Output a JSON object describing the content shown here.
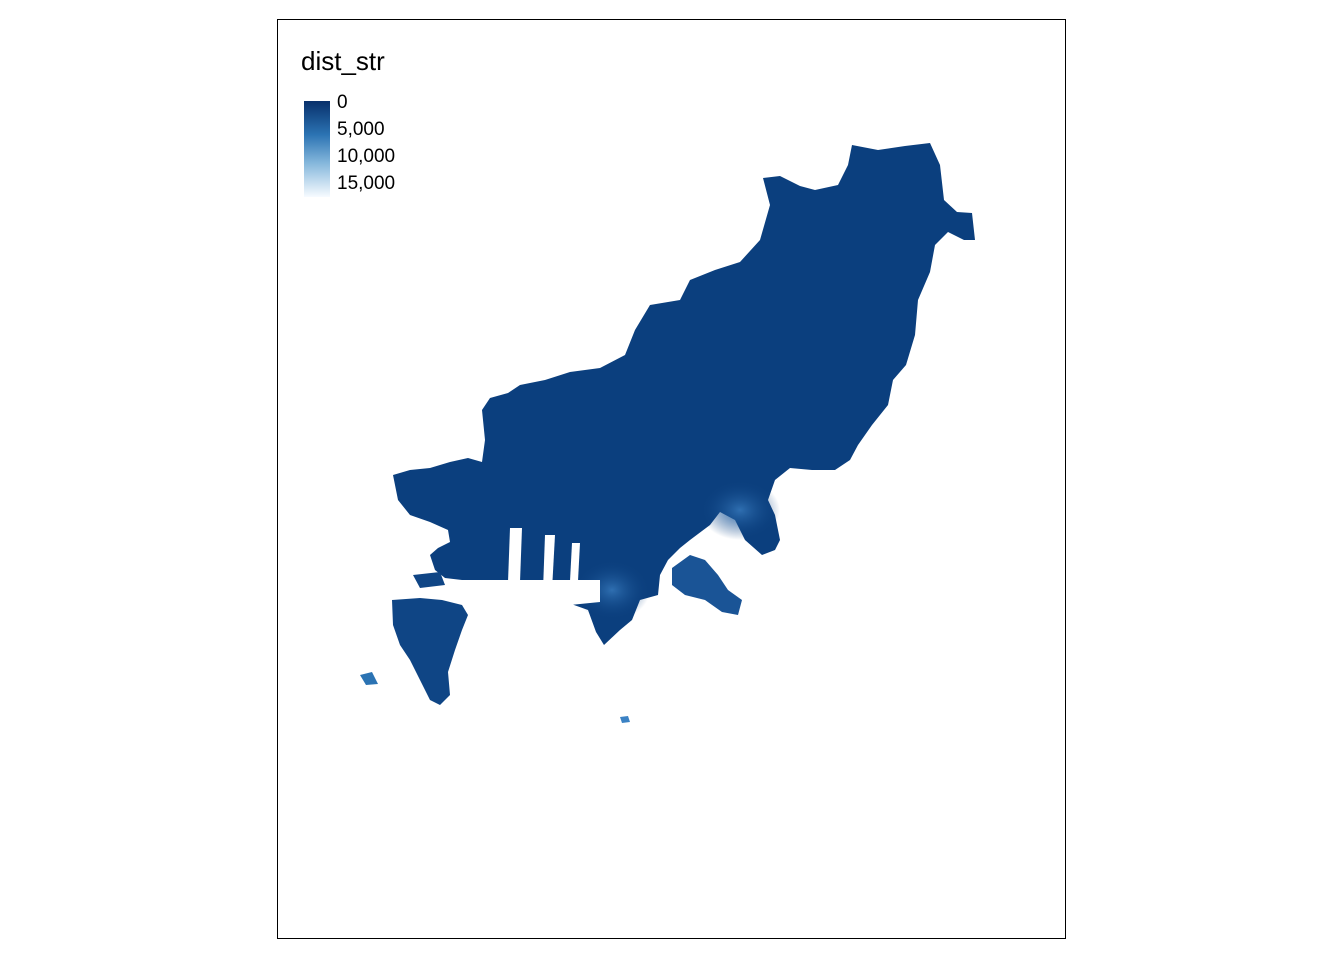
{
  "legend": {
    "title": "dist_str",
    "labels": [
      "0",
      "5,000",
      "10,000",
      "15,000"
    ],
    "colors": [
      "#08306b",
      "#2b73b3",
      "#86b8dc",
      "#f7fbff"
    ]
  },
  "map": {
    "fill_dark": "#0b3f7e",
    "fill_mid": "#1f5ea3",
    "fill_light": "#3b82c4"
  }
}
